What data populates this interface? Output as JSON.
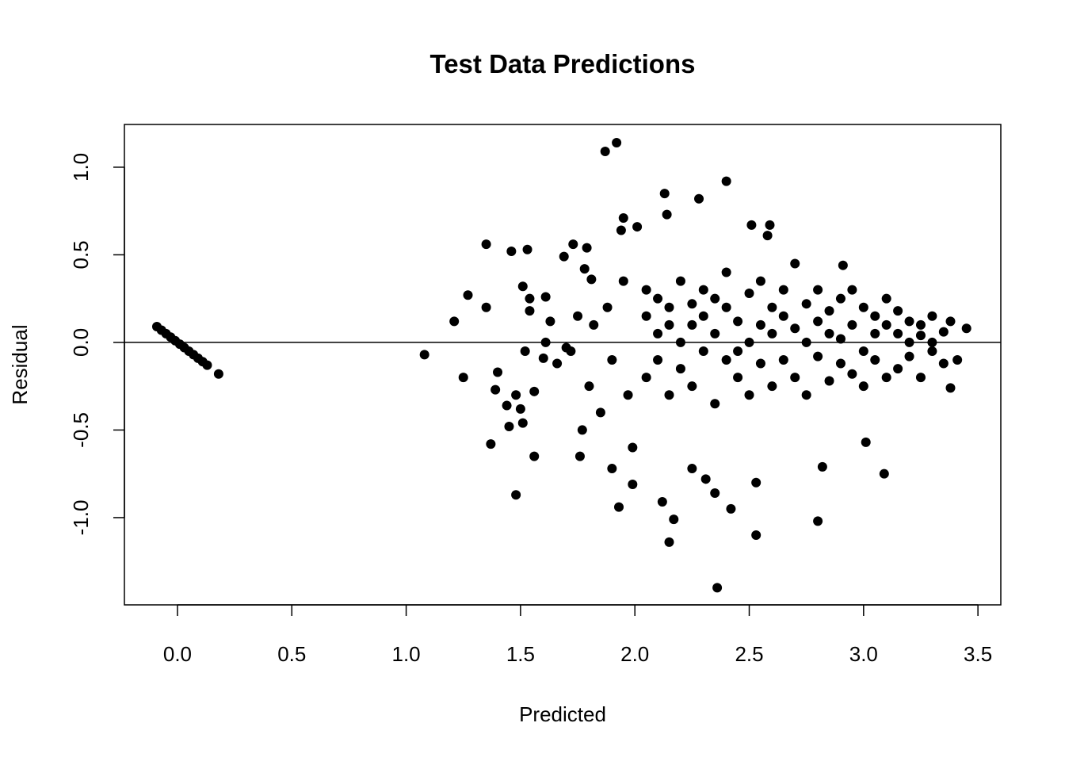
{
  "chart_data": {
    "type": "scatter",
    "title": "Test Data Predictions",
    "x_label": "Predicted",
    "y_label": "Residual",
    "color": "#000000",
    "reference_line": 0,
    "xlim": [
      -0.232,
      3.6
    ],
    "ylim": [
      -1.498,
      1.244
    ],
    "xticks": [
      {
        "value": 0,
        "label": "0.0"
      },
      0.5,
      {
        "value": 1,
        "label": "1.0"
      },
      1.5,
      {
        "value": 2,
        "label": "2.0"
      },
      2.5,
      {
        "value": 3,
        "label": "3.0"
      },
      3.5
    ],
    "yticks": [
      {
        "value": -1,
        "label": "-1.0"
      },
      -0.5,
      {
        "value": 0,
        "label": "0.0"
      },
      0.5,
      {
        "value": 1,
        "label": "1.0"
      }
    ],
    "x": [
      -0.09,
      -0.07,
      -0.05,
      -0.03,
      -0.01,
      0.01,
      0.03,
      0.05,
      0.07,
      0.09,
      0.11,
      0.13,
      0.18,
      1.08,
      1.21,
      1.27,
      1.25,
      1.35,
      1.35,
      1.37,
      1.4,
      1.39,
      1.44,
      1.45,
      1.46,
      1.48,
      1.48,
      1.5,
      1.51,
      1.51,
      1.52,
      1.53,
      1.54,
      1.54,
      1.56,
      1.56,
      1.61,
      1.6,
      1.61,
      1.63,
      1.66,
      1.7,
      1.69,
      1.73,
      1.76,
      1.77,
      1.79,
      1.81,
      1.87,
      1.92,
      1.9,
      1.93,
      1.94,
      1.95,
      1.99,
      1.99,
      2.01,
      2.13,
      2.14,
      2.12,
      2.15,
      2.17,
      2.28,
      2.4,
      2.36,
      2.25,
      2.31,
      2.35,
      2.42,
      2.53,
      2.53,
      2.51,
      2.58,
      2.59,
      2.8,
      2.82,
      3.09,
      3.01,
      3.45,
      3.41,
      3.38,
      3.38,
      2.91,
      1.8,
      1.82,
      1.85,
      1.88,
      1.9,
      1.95,
      1.97,
      1.75,
      1.72,
      1.78,
      2.05,
      2.05,
      2.05,
      2.1,
      2.1,
      2.1,
      2.15,
      2.15,
      2.15,
      2.2,
      2.2,
      2.2,
      2.25,
      2.25,
      2.25,
      2.3,
      2.3,
      2.3,
      2.35,
      2.35,
      2.35,
      2.4,
      2.4,
      2.4,
      2.45,
      2.45,
      2.45,
      2.5,
      2.5,
      2.5,
      2.55,
      2.55,
      2.55,
      2.6,
      2.6,
      2.6,
      2.65,
      2.65,
      2.65,
      2.7,
      2.7,
      2.7,
      2.75,
      2.75,
      2.75,
      2.8,
      2.8,
      2.8,
      2.85,
      2.85,
      2.85,
      2.9,
      2.9,
      2.9,
      2.95,
      2.95,
      2.95,
      3.0,
      3.0,
      3.0,
      3.05,
      3.05,
      3.05,
      3.1,
      3.1,
      3.1,
      3.15,
      3.15,
      3.15,
      3.2,
      3.2,
      3.2,
      3.25,
      3.25,
      3.25,
      3.3,
      3.3,
      3.3,
      3.35,
      3.35
    ],
    "values": [
      0.09,
      0.07,
      0.05,
      0.03,
      0.01,
      -0.01,
      -0.03,
      -0.05,
      -0.07,
      -0.09,
      -0.11,
      -0.13,
      -0.18,
      -0.07,
      0.12,
      0.27,
      -0.2,
      0.56,
      0.2,
      -0.58,
      -0.17,
      -0.27,
      -0.36,
      -0.48,
      0.52,
      -0.87,
      -0.3,
      -0.38,
      -0.46,
      0.32,
      -0.05,
      0.53,
      0.25,
      0.18,
      -0.65,
      -0.28,
      0.26,
      -0.09,
      0.0,
      0.12,
      -0.12,
      -0.03,
      0.49,
      0.56,
      -0.65,
      -0.5,
      0.54,
      0.36,
      1.09,
      1.14,
      -0.72,
      -0.94,
      0.64,
      0.71,
      -0.6,
      -0.81,
      0.66,
      0.85,
      0.73,
      -0.91,
      -1.14,
      -1.01,
      0.82,
      0.92,
      -1.4,
      -0.72,
      -0.78,
      -0.86,
      -0.95,
      -1.1,
      -0.8,
      0.67,
      0.61,
      0.67,
      -1.02,
      -0.71,
      -0.75,
      -0.57,
      0.08,
      -0.1,
      0.12,
      -0.26,
      0.44,
      -0.25,
      0.1,
      -0.4,
      0.2,
      -0.1,
      0.35,
      -0.3,
      0.15,
      -0.05,
      0.42,
      0.15,
      -0.2,
      0.3,
      -0.1,
      0.25,
      0.05,
      0.2,
      -0.3,
      0.1,
      0.0,
      -0.15,
      0.35,
      0.1,
      -0.25,
      0.22,
      -0.05,
      0.3,
      0.15,
      0.05,
      -0.35,
      0.25,
      -0.1,
      0.2,
      0.4,
      0.12,
      -0.2,
      -0.05,
      0.28,
      -0.3,
      0.0,
      0.1,
      -0.12,
      0.35,
      -0.25,
      0.2,
      0.05,
      0.3,
      -0.1,
      0.15,
      -0.2,
      0.08,
      0.45,
      0.22,
      -0.3,
      0.0,
      -0.08,
      0.3,
      0.12,
      0.18,
      -0.22,
      0.05,
      -0.12,
      0.25,
      0.02,
      0.1,
      -0.18,
      0.3,
      -0.05,
      0.2,
      -0.25,
      0.15,
      -0.1,
      0.05,
      -0.2,
      0.1,
      0.25,
      0.05,
      -0.15,
      0.18,
      -0.08,
      0.12,
      0.0,
      0.1,
      -0.2,
      0.04,
      -0.05,
      0.15,
      0.0,
      0.06,
      -0.12
    ]
  }
}
